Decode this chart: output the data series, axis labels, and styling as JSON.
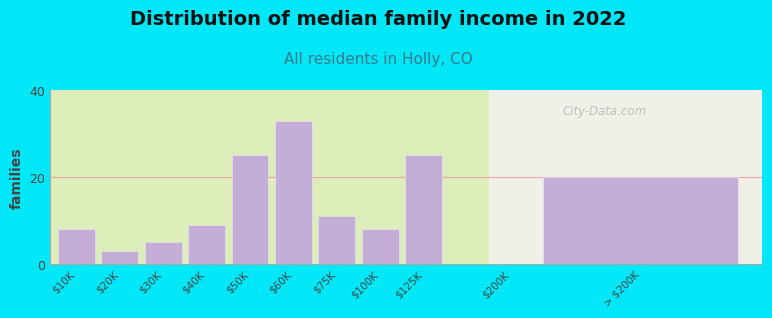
{
  "title": "Distribution of median family income in 2022",
  "subtitle": "All residents in Holly, CO",
  "ylabel": "families",
  "categories": [
    "$10K",
    "$20K",
    "$30K",
    "$40K",
    "$50K",
    "$60K",
    "$75K",
    "$100K",
    "$125K",
    "$200K",
    "> $200K"
  ],
  "values": [
    8,
    3,
    5,
    9,
    25,
    33,
    11,
    8,
    25,
    0,
    20
  ],
  "bar_color": "#c4aed8",
  "ylim": [
    0,
    40
  ],
  "yticks": [
    0,
    20,
    40
  ],
  "background_outer": "#00e8f8",
  "grid_color": "#e8a0a0",
  "title_fontsize": 14,
  "subtitle_fontsize": 11,
  "subtitle_color": "#3a7a8a",
  "title_color": "#111111",
  "watermark": "City-Data.com",
  "watermark_color": "#b0b0b0",
  "x_positions": [
    0,
    1,
    2,
    3,
    4,
    5,
    6,
    7,
    8,
    10,
    13
  ],
  "bar_widths": [
    0.85,
    0.85,
    0.85,
    0.85,
    0.85,
    0.85,
    0.85,
    0.85,
    0.85,
    0.85,
    4.5
  ],
  "xlim": [
    -0.6,
    15.8
  ],
  "green_bg_end": 9.5,
  "bg_left_color": "#ddeebb",
  "bg_right_color": "#f0f0e8"
}
